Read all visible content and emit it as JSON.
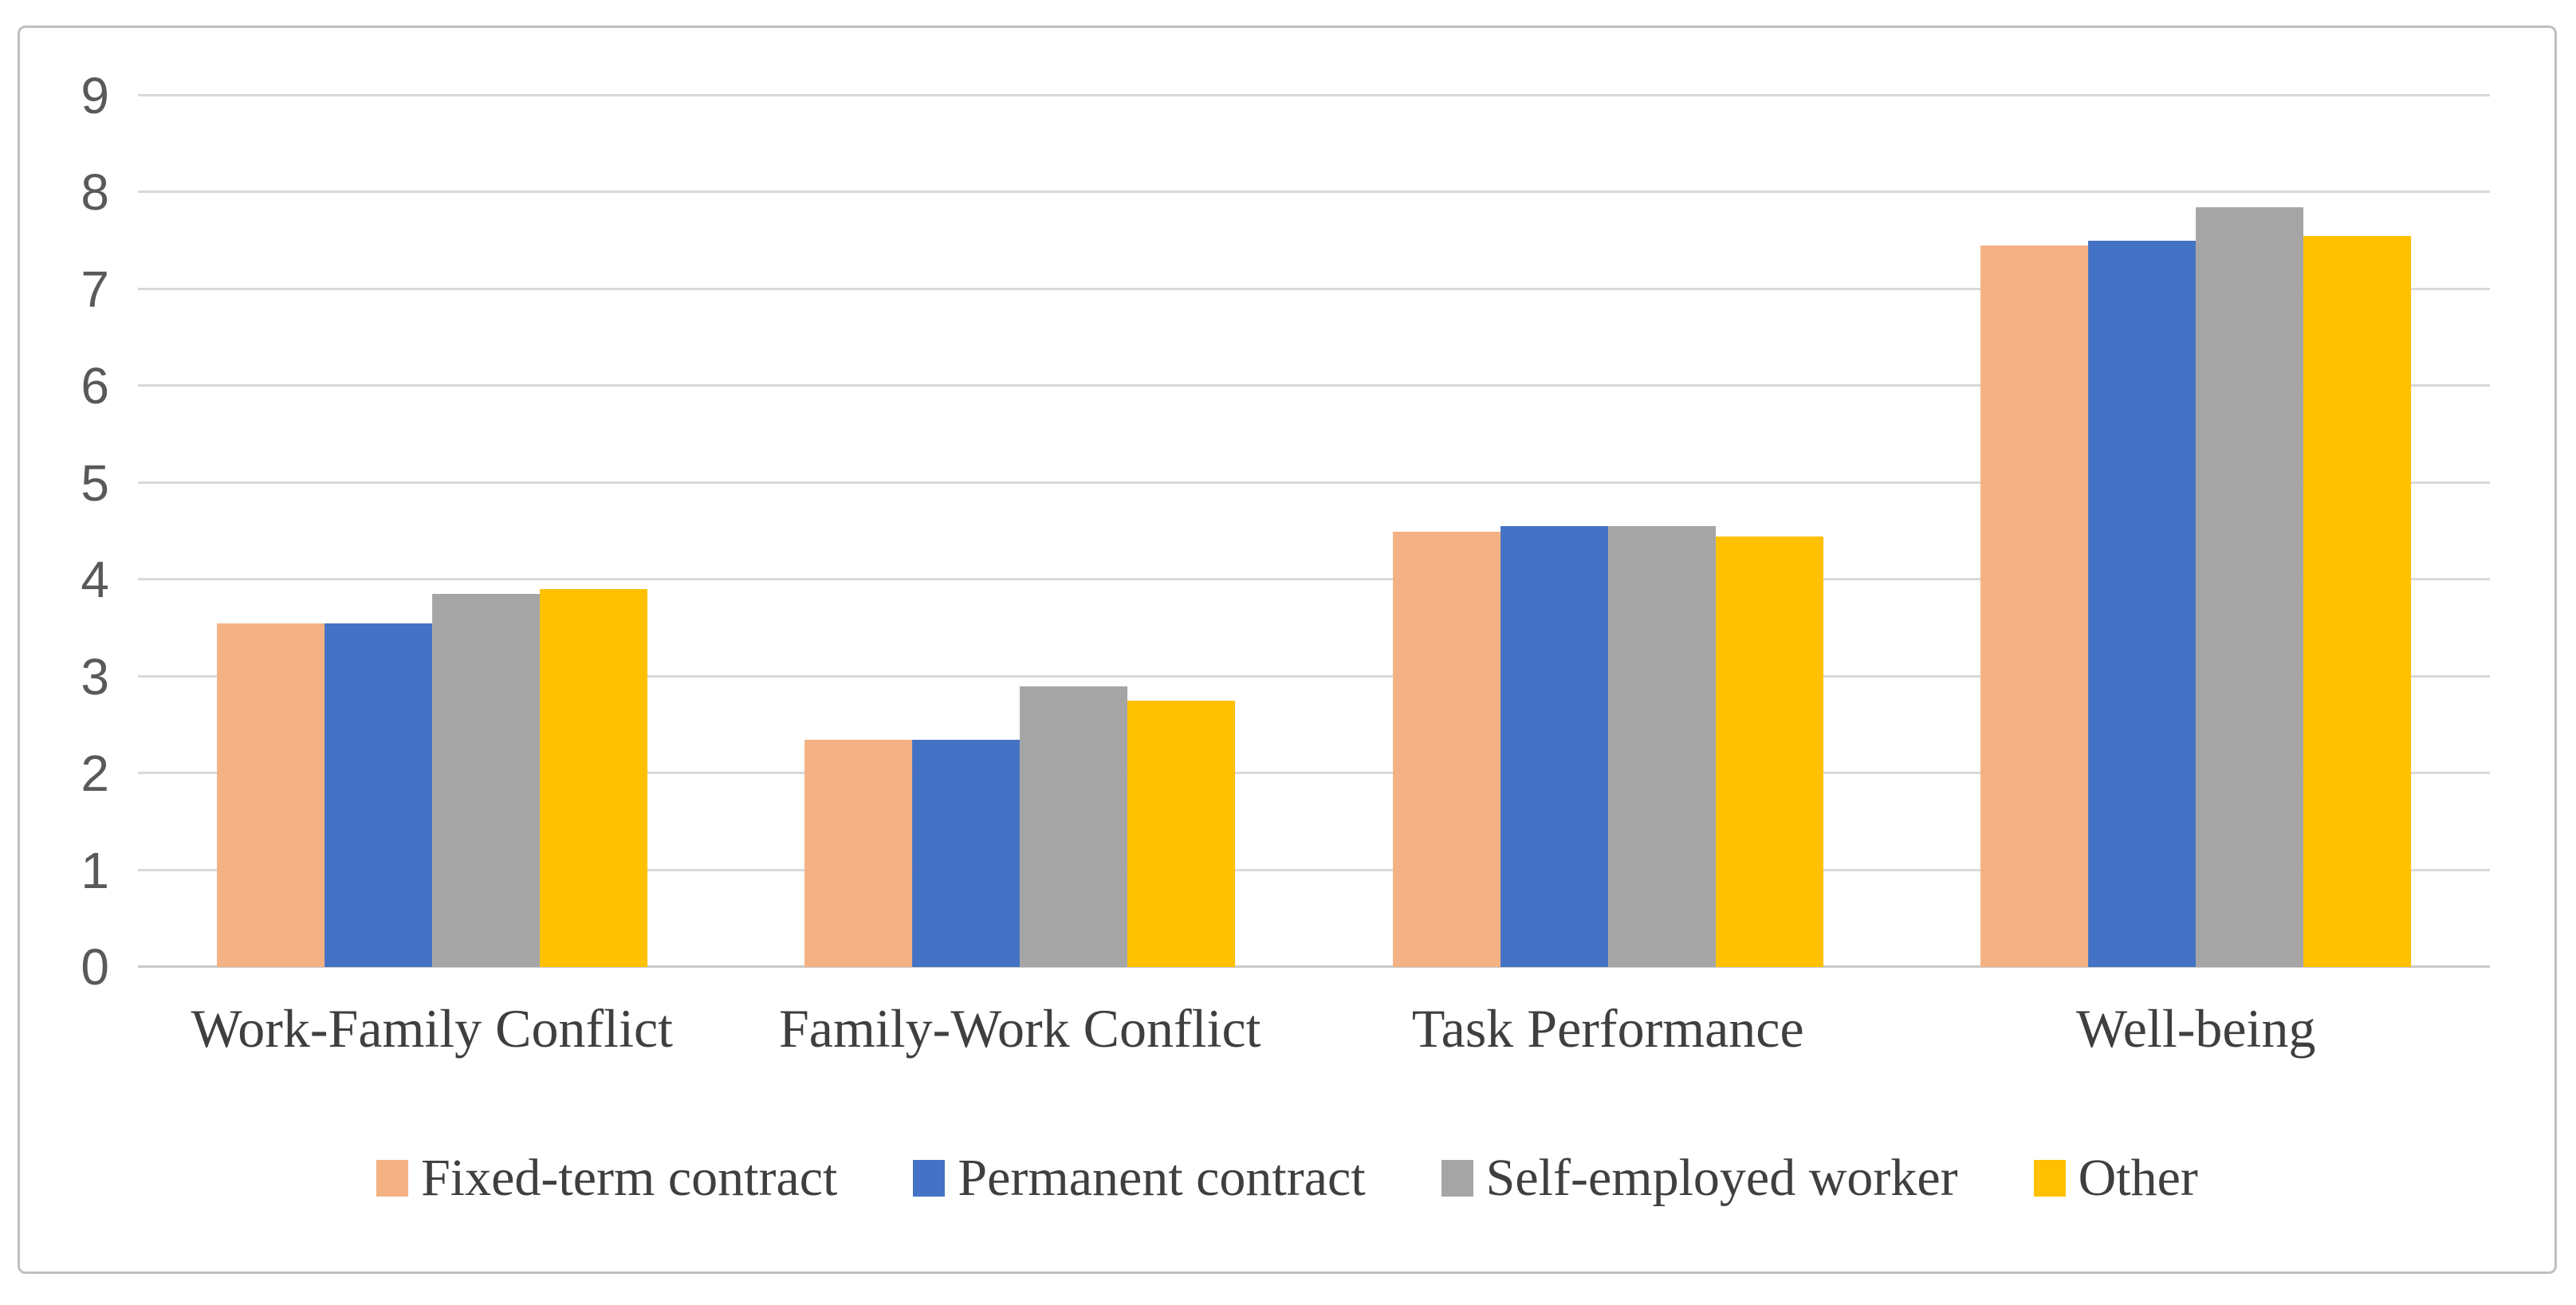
{
  "figure": {
    "background_color": "#FFFFFF",
    "border_color": "#BFBFBF",
    "title": ""
  },
  "chart_data": {
    "type": "bar",
    "title": "",
    "xlabel": "",
    "ylabel": "",
    "categories": [
      "Work-Family Conflict",
      "Family-Work Conflict",
      "Task Performance",
      "Well-being"
    ],
    "series": [
      {
        "name": "Fixed-term contract",
        "color": "#F4B183",
        "values": [
          3.55,
          2.35,
          4.5,
          7.45
        ]
      },
      {
        "name": "Permanent contract",
        "color": "#4472C4",
        "values": [
          3.55,
          2.35,
          4.55,
          7.5
        ]
      },
      {
        "name": "Self-employed worker",
        "color": "#A5A5A5",
        "values": [
          3.85,
          2.9,
          4.55,
          7.85
        ]
      },
      {
        "name": "Other",
        "color": "#FFC000",
        "values": [
          3.9,
          2.75,
          4.45,
          7.55
        ]
      }
    ],
    "ylim": [
      0,
      9
    ],
    "yticks": [
      0,
      1,
      2,
      3,
      4,
      5,
      6,
      7,
      8,
      9
    ],
    "grid": "horizontal",
    "gridline_color": "#D9D9D9",
    "baseline_color": "#C9C9C9",
    "tick_label_color": "#595959",
    "category_label_color": "#3F3F3F",
    "legend_position": "bottom"
  }
}
